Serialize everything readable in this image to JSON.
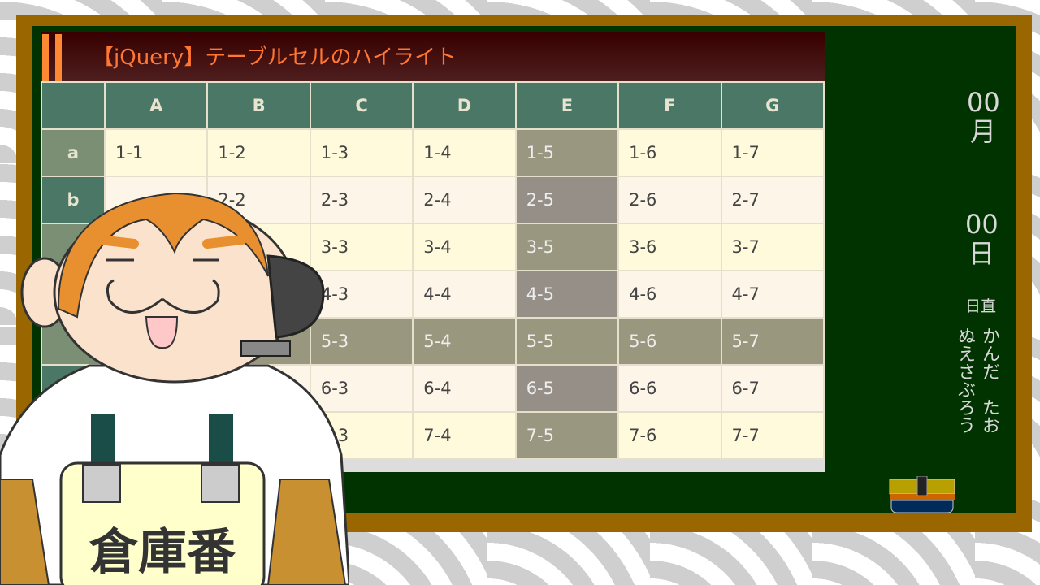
{
  "title": "【jQuery】テーブルセルのハイライト",
  "columns": [
    "A",
    "B",
    "C",
    "D",
    "E",
    "F",
    "G"
  ],
  "rows": [
    {
      "label": "a",
      "cells": [
        "1-1",
        "1-2",
        "1-3",
        "1-4",
        "1-5",
        "1-6",
        "1-7"
      ]
    },
    {
      "label": "b",
      "cells": [
        "",
        "2-2",
        "2-3",
        "2-4",
        "2-5",
        "2-6",
        "2-7"
      ]
    },
    {
      "label": "",
      "cells": [
        "",
        "",
        "3-3",
        "3-4",
        "3-5",
        "3-6",
        "3-7"
      ]
    },
    {
      "label": "",
      "cells": [
        "",
        "",
        "4-3",
        "4-4",
        "4-5",
        "4-6",
        "4-7"
      ]
    },
    {
      "label": "",
      "cells": [
        "",
        "",
        "5-3",
        "5-4",
        "5-5",
        "5-6",
        "5-7"
      ]
    },
    {
      "label": "",
      "cells": [
        "",
        "",
        "6-3",
        "6-4",
        "6-5",
        "6-6",
        "6-7"
      ]
    },
    {
      "label": "",
      "cells": [
        "",
        "",
        "7-3",
        "7-4",
        "7-5",
        "7-6",
        "7-7"
      ]
    }
  ],
  "highlight": {
    "row": 5,
    "column": "E",
    "color": "#99977f"
  },
  "board": {
    "month": "00",
    "month_unit": "月",
    "day": "00",
    "day_unit": "日",
    "duty_label": "日直",
    "names": [
      "かんだ　たお",
      "ぬえさぶろう"
    ]
  },
  "character": {
    "sign": "倉庫番"
  },
  "colors": {
    "board": "#003300",
    "frame": "#996600",
    "header": "#4a7766",
    "title": "#ff7733"
  }
}
